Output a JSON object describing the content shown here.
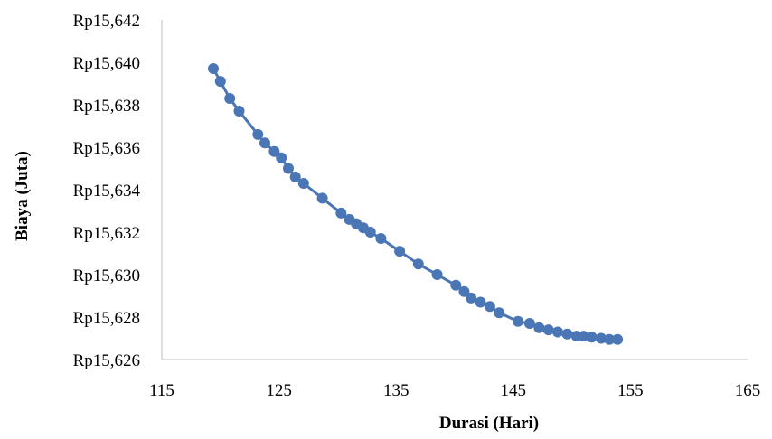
{
  "chart_data": {
    "type": "line",
    "title": "",
    "xlabel": "Durasi (Hari)",
    "ylabel": "Biaya (Juta)",
    "xlim": [
      115,
      165
    ],
    "ylim": [
      15626,
      15642
    ],
    "x_ticks": [
      115,
      125,
      135,
      145,
      155,
      165
    ],
    "y_ticks": [
      15626,
      15628,
      15630,
      15632,
      15634,
      15636,
      15638,
      15640,
      15642
    ],
    "y_tick_prefix": "Rp",
    "grid": false,
    "legend": "none",
    "series": [
      {
        "color": "#4a76b5",
        "marker": "circle",
        "x": [
          119.4,
          120.0,
          120.8,
          121.6,
          123.2,
          123.8,
          124.6,
          125.2,
          125.8,
          126.4,
          127.1,
          128.7,
          130.3,
          131.0,
          131.6,
          132.2,
          132.8,
          133.7,
          135.3,
          136.9,
          138.5,
          140.1,
          140.8,
          141.4,
          142.2,
          143.0,
          143.8,
          145.4,
          146.4,
          147.2,
          148.0,
          148.8,
          149.6,
          150.4,
          151.0,
          151.7,
          152.5,
          153.2,
          153.9
        ],
        "y": [
          15639.7,
          15639.1,
          15638.3,
          15637.7,
          15636.6,
          15636.2,
          15635.8,
          15635.5,
          15635.0,
          15634.6,
          15634.3,
          15633.6,
          15632.9,
          15632.6,
          15632.4,
          15632.2,
          15632.0,
          15631.7,
          15631.1,
          15630.5,
          15630.0,
          15629.5,
          15629.2,
          15628.9,
          15628.7,
          15628.5,
          15628.2,
          15627.8,
          15627.7,
          15627.5,
          15627.4,
          15627.3,
          15627.2,
          15627.1,
          15627.1,
          15627.05,
          15627.0,
          15626.95,
          15626.95
        ]
      }
    ]
  }
}
